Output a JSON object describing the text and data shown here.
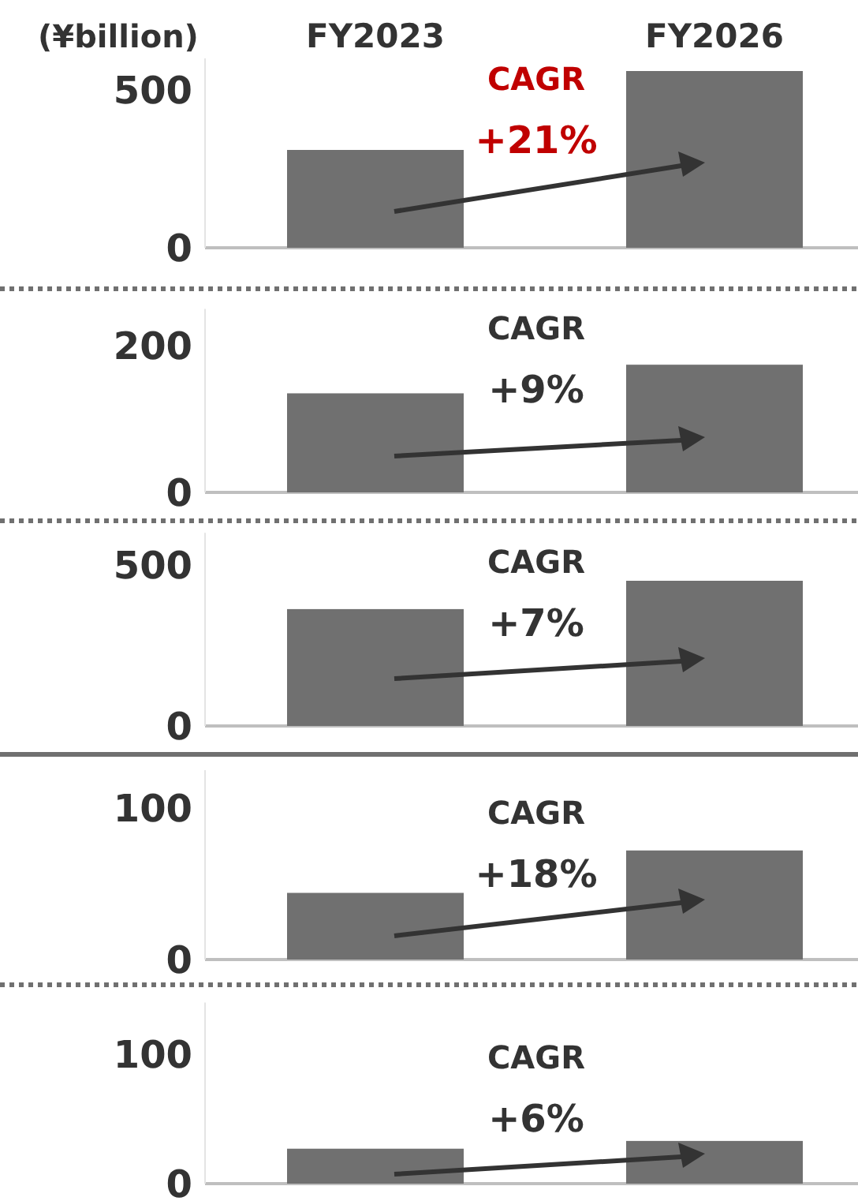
{
  "chart_data": [
    {
      "type": "bar",
      "ylabel": "(¥billion)",
      "categories": [
        "FY2023",
        "FY2026"
      ],
      "values": [
        310,
        560
      ],
      "color": "#707070",
      "ylim": [
        0,
        600
      ],
      "yticks": [
        0,
        500
      ],
      "annotations": [
        "CAGR",
        "+21%"
      ]
    },
    {
      "type": "bar",
      "categories": [
        null,
        null
      ],
      "values": [
        135,
        174
      ],
      "color": "#707070",
      "ylim": [
        0,
        250
      ],
      "yticks": [
        0,
        200
      ],
      "annotations": [
        "CAGR",
        "+9%"
      ]
    },
    {
      "type": "bar",
      "categories": [
        null,
        null
      ],
      "values": [
        363,
        451
      ],
      "color": "#707070",
      "ylim": [
        0,
        600
      ],
      "yticks": [
        0,
        500
      ],
      "annotations": [
        "CAGR",
        "+7%"
      ]
    },
    {
      "type": "bar",
      "categories": [
        null,
        null
      ],
      "values": [
        44,
        72
      ],
      "color": "#707070",
      "ylim": [
        0,
        125
      ],
      "yticks": [
        0,
        100
      ],
      "annotations": [
        "CAGR",
        "+18%"
      ]
    },
    {
      "type": "bar",
      "categories": [
        null,
        null
      ],
      "values": [
        27,
        33
      ],
      "color": "#707070",
      "ylim": [
        0,
        140
      ],
      "yticks": [
        0,
        100
      ],
      "annotations": [
        "CAGR",
        "+6%"
      ]
    }
  ]
}
